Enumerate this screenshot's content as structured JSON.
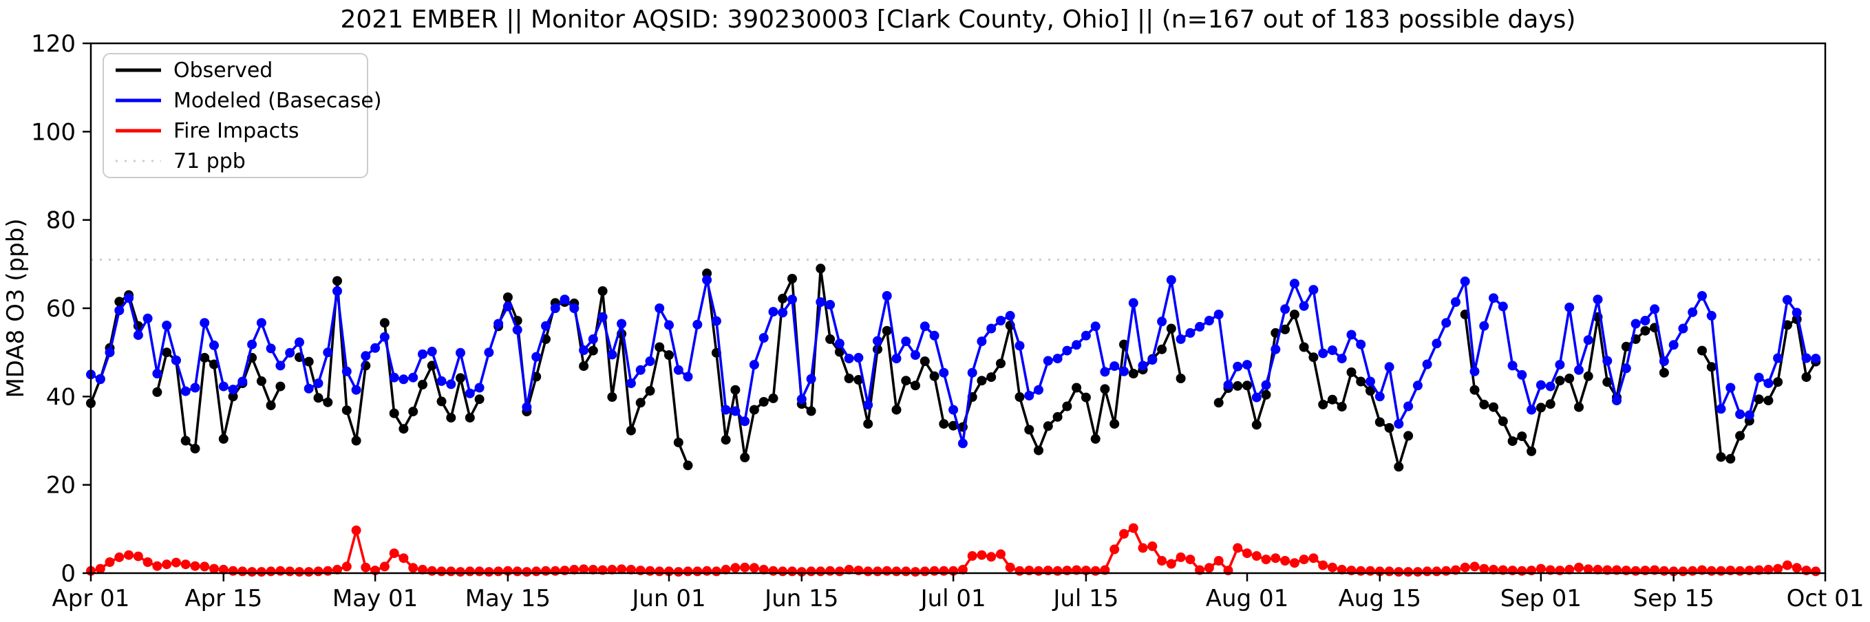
{
  "chart_data": {
    "type": "line",
    "title": "2021 EMBER || Monitor AQSID: 390230003 [Clark County, Ohio] || (n=167 out of 183 possible days)",
    "ylabel": "MDA8 O3 (ppb)",
    "xlabel": "",
    "ylim": [
      0,
      120
    ],
    "yticks": [
      0,
      20,
      40,
      60,
      80,
      100,
      120
    ],
    "xtick_labels": [
      "Apr 01",
      "Apr 15",
      "May 01",
      "May 15",
      "Jun 01",
      "Jun 15",
      "Jul 01",
      "Jul 15",
      "Aug 01",
      "Aug 15",
      "Sep 01",
      "Sep 15",
      "Oct 01"
    ],
    "xtick_day_index": [
      0,
      14,
      30,
      44,
      61,
      75,
      91,
      105,
      122,
      136,
      153,
      167,
      183
    ],
    "days_axis_total": 183,
    "days_with_observations": 167,
    "months": [
      [
        "Apr",
        30
      ],
      [
        "May",
        31
      ],
      [
        "Jun",
        30
      ],
      [
        "Jul",
        31
      ],
      [
        "Aug",
        31
      ],
      [
        "Sep",
        30
      ]
    ],
    "grid": false,
    "legend_position": "upper-left",
    "legend": [
      "Observed",
      "Modeled (Basecase)",
      "Fire Impacts",
      "71 ppb"
    ],
    "threshold": {
      "value": 71,
      "label": "71 ppb",
      "color": "#cccccc",
      "line_style": "dotted"
    },
    "series": [
      {
        "name": "Observed",
        "color": "#000000",
        "values": [
          38.5,
          44,
          51,
          61.5,
          63,
          56,
          null,
          41,
          50,
          48.2,
          30,
          28.2,
          48.8,
          47.3,
          30.4,
          40,
          43,
          48.8,
          43.5,
          38,
          42.3,
          null,
          48.9,
          47.9,
          39.7,
          38.7,
          66.2,
          36.9,
          30,
          47,
          null,
          56.7,
          36.2,
          32.7,
          36.6,
          42.7,
          47,
          38.9,
          35.2,
          44.2,
          35.2,
          39.4,
          null,
          55.9,
          62.5,
          57.2,
          36.6,
          44.5,
          53,
          61.2,
          61.4,
          61.1,
          46.9,
          50.4,
          63.9,
          39.9,
          54.2,
          32.3,
          38.6,
          41.3,
          51.2,
          49.4,
          29.6,
          24.4,
          null,
          67.9,
          49.9,
          30.2,
          41.5,
          26.2,
          37,
          38.8,
          39.6,
          62.2,
          66.7,
          38.3,
          36.7,
          69,
          53,
          50.1,
          44.1,
          43.8,
          33.8,
          50.7,
          54.9,
          37,
          43.6,
          42.5,
          48,
          44.6,
          33.8,
          33.4,
          33.1,
          39.9,
          43.6,
          44.4,
          47.5,
          56.1,
          39.9,
          32.5,
          27.8,
          33.3,
          35.4,
          37.8,
          42,
          39.8,
          30.4,
          41.7,
          33.8,
          51.8,
          45.2,
          46.1,
          48.5,
          50.7,
          55.4,
          44.1,
          null,
          null,
          null,
          38.6,
          41.9,
          42.4,
          42.5,
          33.6,
          40.4,
          54.4,
          55.2,
          58.6,
          51.2,
          48.9,
          38.2,
          39.3,
          37.7,
          45.5,
          43.4,
          41.3,
          34.2,
          32.9,
          24.1,
          31.1,
          null,
          null,
          null,
          null,
          null,
          58.6,
          41.5,
          38.2,
          37.6,
          34.4,
          29.9,
          31,
          27.6,
          37.5,
          38.3,
          43.6,
          44.1,
          37.6,
          44.6,
          58,
          43.3,
          39.8,
          51.3,
          53,
          54.9,
          55.6,
          45.4,
          null,
          null,
          null,
          50.4,
          46.7,
          26.3,
          25.9,
          31.1,
          34.5,
          39.4,
          39.1,
          43.3,
          56.2,
          57.5,
          44.4,
          47.9
        ]
      },
      {
        "name": "Modeled (Basecase)",
        "color": "#0000ff",
        "values": [
          45,
          43.9,
          50,
          59.5,
          62.3,
          53.9,
          57.7,
          45.2,
          56.1,
          48.2,
          41.2,
          42,
          56.7,
          51.6,
          42.3,
          41.6,
          43.4,
          51.8,
          56.7,
          50.9,
          47,
          49.9,
          52.3,
          41.8,
          43,
          50,
          63.9,
          45.7,
          41.5,
          49.2,
          51,
          53.5,
          44.3,
          43.9,
          44.3,
          49.6,
          50.2,
          43.5,
          42.8,
          49.9,
          40.7,
          42,
          50,
          56.5,
          60.4,
          55.1,
          37.6,
          49,
          56,
          60,
          62,
          60,
          50.5,
          53,
          58,
          49.5,
          56.5,
          43,
          46,
          48,
          60,
          56.2,
          46,
          44.5,
          56.3,
          66.4,
          57.1,
          37,
          36.7,
          34.4,
          47.2,
          53.3,
          59.2,
          59,
          62,
          39.4,
          44,
          61.4,
          60.8,
          52,
          48.6,
          48.8,
          38.1,
          52.6,
          62.8,
          48.6,
          52.5,
          49.4,
          55.9,
          53.8,
          45.4,
          37,
          29.4,
          45.4,
          52.5,
          55.4,
          57.2,
          58.3,
          51.5,
          40.2,
          41.5,
          48.1,
          48.6,
          50.4,
          51.7,
          53.8,
          55.9,
          45.6,
          46.9,
          45.7,
          61.2,
          47,
          48.3,
          57,
          66.4,
          53,
          54.4,
          55.8,
          57.2,
          58.6,
          42.6,
          46.8,
          47.2,
          39.8,
          42.6,
          50.7,
          59.8,
          65.6,
          60.5,
          64.2,
          49.8,
          50.5,
          48.6,
          54,
          51.8,
          43.4,
          40,
          46.7,
          33.8,
          37.8,
          42.5,
          47.3,
          52,
          56.7,
          61.4,
          66.1,
          45.7,
          56,
          62.3,
          60.4,
          47,
          44.9,
          37,
          42.6,
          42.3,
          47.2,
          60.2,
          46,
          52.8,
          62,
          48.1,
          39.1,
          46.4,
          56.5,
          57.2,
          59.8,
          48,
          51.7,
          55.4,
          59.1,
          62.8,
          58.3,
          37.2,
          42,
          36,
          35.8,
          44.3,
          43,
          48.7,
          61.9,
          59,
          48.7,
          48.6
        ]
      },
      {
        "name": "Fire Impacts",
        "color": "#ff0000",
        "values": [
          0.5,
          1,
          2.5,
          3.6,
          4.1,
          3.8,
          2.5,
          1.6,
          2,
          2.4,
          2,
          1.6,
          1.5,
          1,
          0.8,
          0.5,
          0.4,
          0.3,
          0.3,
          0.4,
          0.5,
          0.4,
          0.3,
          0.3,
          0.4,
          0.5,
          0.8,
          1.5,
          9.7,
          1.3,
          0.6,
          1.5,
          4.5,
          3.4,
          1.2,
          0.8,
          0.5,
          0.4,
          0.4,
          0.3,
          0.4,
          0.4,
          0.3,
          0.4,
          0.5,
          0.4,
          0.3,
          0.4,
          0.5,
          0.5,
          0.6,
          0.8,
          0.9,
          0.8,
          0.7,
          0.8,
          0.9,
          0.8,
          0.6,
          0.5,
          0.4,
          0.4,
          0.3,
          0.4,
          0.4,
          0.5,
          0.4,
          0.8,
          1.2,
          1.3,
          1.2,
          0.8,
          0.5,
          0.4,
          0.4,
          0.3,
          0.4,
          0.4,
          0.5,
          0.4,
          0.8,
          0.6,
          0.4,
          0.4,
          0.5,
          0.4,
          0.4,
          0.3,
          0.4,
          0.5,
          0.5,
          0.5,
          0.8,
          3.9,
          4.1,
          3.7,
          4.3,
          1.3,
          0.5,
          0.6,
          0.5,
          0.6,
          0.5,
          0.6,
          0.7,
          0.6,
          0.5,
          0.7,
          5.4,
          8.9,
          10.2,
          5.7,
          6.1,
          2.8,
          2.1,
          3.6,
          3.1,
          0.7,
          1.2,
          2.8,
          0.6,
          5.7,
          4.5,
          3.9,
          3.1,
          3.4,
          2.8,
          2.3,
          3.1,
          3.4,
          1.8,
          1.3,
          0.8,
          0.6,
          0.5,
          0.5,
          0.4,
          0.4,
          0.3,
          0.3,
          0.3,
          0.4,
          0.4,
          0.5,
          0.7,
          1.3,
          1.5,
          1,
          0.8,
          0.7,
          0.6,
          0.5,
          0.6,
          1,
          0.7,
          0.6,
          0.8,
          1.3,
          0.9,
          0.8,
          0.7,
          0.7,
          0.6,
          0.5,
          0.6,
          0.7,
          0.5,
          0.4,
          0.4,
          0.5,
          0.7,
          0.5,
          0.5,
          0.6,
          0.5,
          0.6,
          0.7,
          0.8,
          1,
          1.8,
          1.2,
          0.6,
          0.4
        ]
      }
    ]
  },
  "frame": {
    "background": "#ffffff",
    "spine_color": "#000000"
  }
}
